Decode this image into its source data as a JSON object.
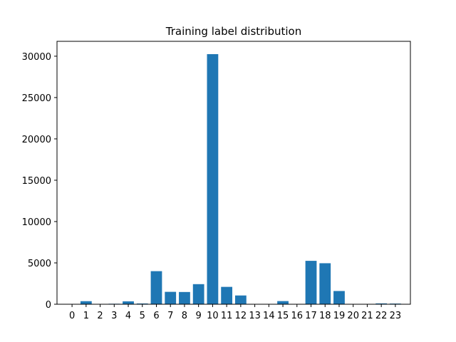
{
  "chart_data": {
    "type": "bar",
    "title": "Training label distribution",
    "xlabel": "",
    "ylabel": "",
    "categories": [
      "0",
      "1",
      "2",
      "3",
      "4",
      "5",
      "6",
      "7",
      "8",
      "9",
      "10",
      "11",
      "12",
      "13",
      "14",
      "15",
      "16",
      "17",
      "18",
      "19",
      "20",
      "21",
      "22",
      "23"
    ],
    "values": [
      20,
      370,
      10,
      60,
      350,
      90,
      4000,
      1500,
      1480,
      2430,
      30250,
      2100,
      1060,
      10,
      10,
      380,
      10,
      5250,
      4960,
      1600,
      10,
      10,
      100,
      80
    ],
    "ylim": [
      0,
      31800
    ],
    "yticks": [
      0,
      5000,
      10000,
      15000,
      20000,
      25000,
      30000
    ],
    "bar_color": "#1f77b4",
    "grid": false,
    "legend": "none"
  }
}
